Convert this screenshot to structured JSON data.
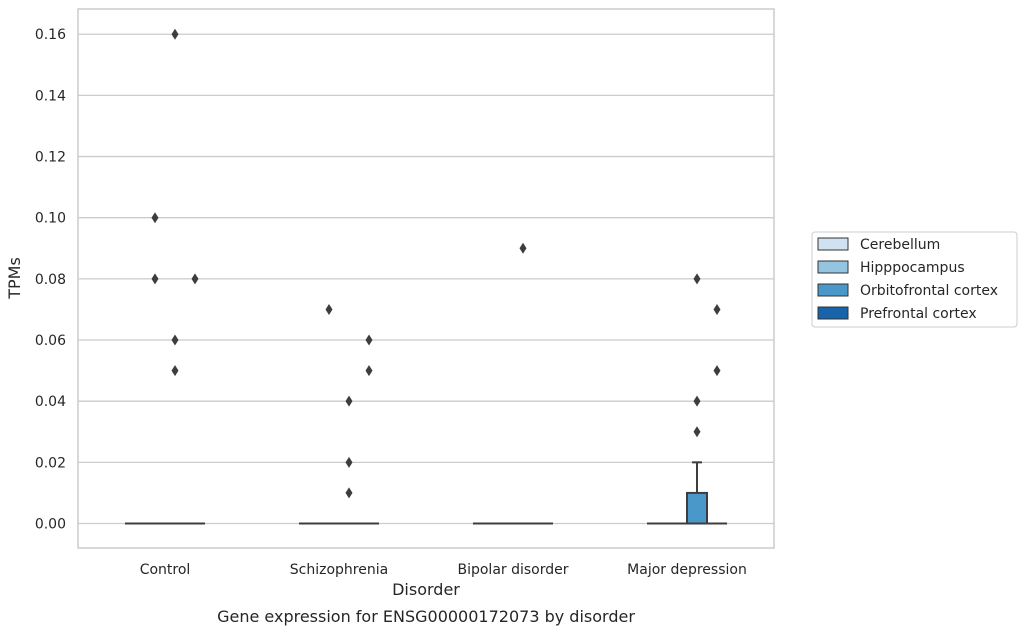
{
  "chart_data": {
    "type": "box",
    "title": "",
    "caption": "Gene expression for ENSG00000172073 by disorder",
    "xlabel": "Disorder",
    "ylabel": "TPMs",
    "ylim": [
      -0.008,
      0.168
    ],
    "yticks": [
      0.0,
      0.02,
      0.04,
      0.06,
      0.08,
      0.1,
      0.12,
      0.14,
      0.16
    ],
    "ytick_labels": [
      "0.00",
      "0.02",
      "0.04",
      "0.06",
      "0.08",
      "0.10",
      "0.12",
      "0.14",
      "0.16"
    ],
    "grid": true,
    "legend_position": "outside-right",
    "categories": [
      "Control",
      "Schizophrenia",
      "Bipolar disorder",
      "Major depression"
    ],
    "series": [
      {
        "name": "Cerebellum",
        "color": "#d0e1f2",
        "boxes": [
          {
            "q1": 0,
            "median": 0,
            "q3": 0,
            "whisker_low": 0,
            "whisker_high": 0,
            "outliers": []
          },
          {
            "q1": 0,
            "median": 0,
            "q3": 0,
            "whisker_low": 0,
            "whisker_high": 0,
            "outliers": []
          },
          {
            "q1": 0,
            "median": 0,
            "q3": 0,
            "whisker_low": 0,
            "whisker_high": 0,
            "outliers": []
          },
          {
            "q1": 0,
            "median": 0,
            "q3": 0,
            "whisker_low": 0,
            "whisker_high": 0,
            "outliers": []
          }
        ]
      },
      {
        "name": "Hipppocampus",
        "color": "#94c4df",
        "boxes": [
          {
            "q1": 0,
            "median": 0,
            "q3": 0,
            "whisker_low": 0,
            "whisker_high": 0,
            "outliers": [
              0.1,
              0.08
            ]
          },
          {
            "q1": 0,
            "median": 0,
            "q3": 0,
            "whisker_low": 0,
            "whisker_high": 0,
            "outliers": [
              0.07
            ]
          },
          {
            "q1": 0,
            "median": 0,
            "q3": 0,
            "whisker_low": 0,
            "whisker_high": 0,
            "outliers": []
          },
          {
            "q1": 0,
            "median": 0,
            "q3": 0,
            "whisker_low": 0,
            "whisker_high": 0,
            "outliers": []
          }
        ]
      },
      {
        "name": "Orbitofrontal cortex",
        "color": "#4a98c9",
        "boxes": [
          {
            "q1": 0,
            "median": 0,
            "q3": 0,
            "whisker_low": 0,
            "whisker_high": 0,
            "outliers": [
              0.16,
              0.06,
              0.05
            ]
          },
          {
            "q1": 0,
            "median": 0,
            "q3": 0,
            "whisker_low": 0,
            "whisker_high": 0,
            "outliers": [
              0.04,
              0.02,
              0.01
            ]
          },
          {
            "q1": 0,
            "median": 0,
            "q3": 0,
            "whisker_low": 0,
            "whisker_high": 0,
            "outliers": [
              0.09
            ]
          },
          {
            "q1": 0,
            "median": 0,
            "q3": 0.01,
            "whisker_low": 0,
            "whisker_high": 0.02,
            "outliers": [
              0.08,
              0.04,
              0.03
            ]
          }
        ]
      },
      {
        "name": "Prefrontal cortex",
        "color": "#1764ab",
        "boxes": [
          {
            "q1": 0,
            "median": 0,
            "q3": 0,
            "whisker_low": 0,
            "whisker_high": 0,
            "outliers": [
              0.08
            ]
          },
          {
            "q1": 0,
            "median": 0,
            "q3": 0,
            "whisker_low": 0,
            "whisker_high": 0,
            "outliers": [
              0.06,
              0.05
            ]
          },
          {
            "q1": 0,
            "median": 0,
            "q3": 0,
            "whisker_low": 0,
            "whisker_high": 0,
            "outliers": []
          },
          {
            "q1": 0,
            "median": 0,
            "q3": 0,
            "whisker_low": 0,
            "whisker_high": 0,
            "outliers": [
              0.07,
              0.05
            ]
          }
        ]
      }
    ],
    "colors": {
      "grid": "#cccccc",
      "frame": "#cccccc",
      "box_edge": "#3d3d3d",
      "outlier": "#3d3d3d",
      "text": "#262626"
    }
  }
}
